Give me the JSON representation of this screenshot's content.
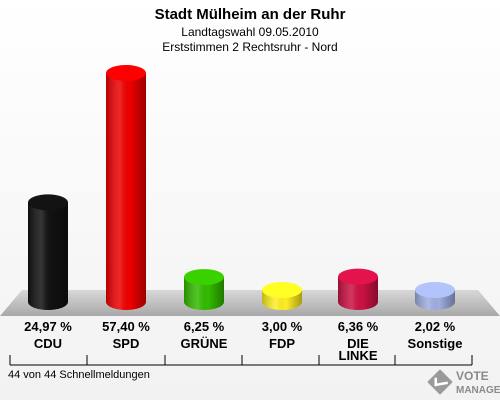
{
  "header": {
    "title": "Stadt Mülheim an der Ruhr",
    "subtitle1": "Landtagswahl 09.05.2010",
    "subtitle2": "Erststimmen 2 Rechtsruhr - Nord"
  },
  "footer": {
    "note": "44 von 44 Schnellmeldungen",
    "logo_top": "VOTE",
    "logo_bottom": "MANAGER"
  },
  "chart_data": {
    "type": "bar",
    "categories": [
      "CDU",
      "SPD",
      "GRÜNE",
      "FDP",
      "DIE LINKE",
      "Sonstige"
    ],
    "values": [
      24.97,
      57.4,
      6.25,
      3.0,
      6.36,
      2.02
    ],
    "value_labels": [
      "24,97 %",
      "57,40 %",
      "6,25 %",
      "3,00 %",
      "6,36 %",
      "2,02 %"
    ],
    "colors": [
      "#111111",
      "#ee0000",
      "#33bb00",
      "#ffee22",
      "#cc1144",
      "#a0aee0"
    ],
    "ylim": [
      0,
      60
    ],
    "grid": false
  }
}
